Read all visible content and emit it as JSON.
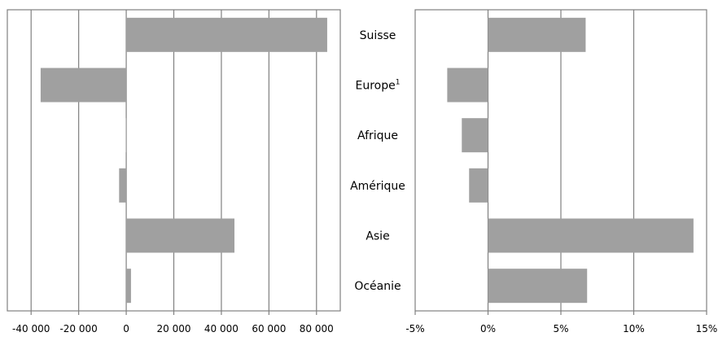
{
  "chart_data": [
    {
      "type": "bar",
      "orientation": "horizontal",
      "categories": [
        "Suisse",
        "Europe",
        "Afrique",
        "Amérique",
        "Asie",
        "Océanie"
      ],
      "values": [
        84500,
        -36000,
        -200,
        -3000,
        45500,
        2000
      ],
      "xlim": [
        -50000,
        90000
      ],
      "xticks": [
        -40000,
        -20000,
        0,
        20000,
        40000,
        60000,
        80000
      ],
      "xtick_labels": [
        "-40 000",
        "-20 000",
        "0",
        "20 000",
        "40 000",
        "60 000",
        "80 000"
      ],
      "grid": true,
      "color": "#a0a0a0"
    },
    {
      "type": "bar",
      "orientation": "horizontal",
      "categories": [
        "Suisse",
        "Europe",
        "Afrique",
        "Amérique",
        "Asie",
        "Océanie"
      ],
      "values": [
        6.7,
        -2.8,
        -1.8,
        -1.3,
        14.1,
        6.8
      ],
      "xlim": [
        -5,
        15
      ],
      "xticks": [
        -5,
        0,
        5,
        10,
        15
      ],
      "xtick_labels": [
        "-5%",
        "0%",
        "5%",
        "10%",
        "15%"
      ],
      "grid": true,
      "color": "#a0a0a0"
    }
  ],
  "category_labels": [
    {
      "text": "Suisse",
      "sup": ""
    },
    {
      "text": "Europe",
      "sup": "1"
    },
    {
      "text": "Afrique",
      "sup": ""
    },
    {
      "text": "Amérique",
      "sup": ""
    },
    {
      "text": "Asie",
      "sup": ""
    },
    {
      "text": "Océanie",
      "sup": ""
    }
  ]
}
